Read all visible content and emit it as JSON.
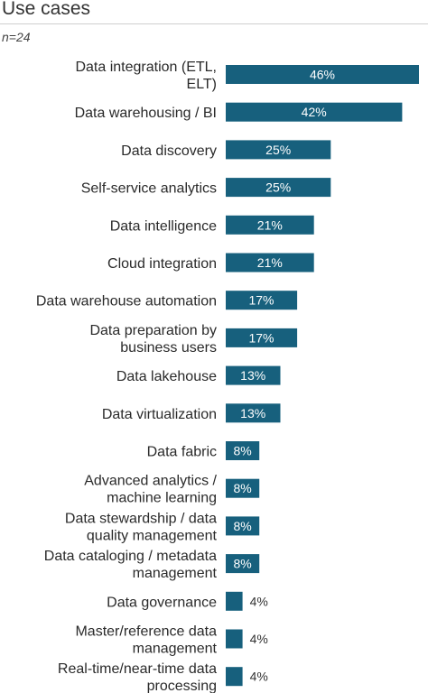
{
  "chart_data": {
    "type": "bar",
    "orientation": "horizontal",
    "title": "Use cases",
    "note": "n=24",
    "bar_color": "#17607d",
    "value_suffix": "%",
    "xlim": [
      0,
      46
    ],
    "grid": false,
    "legend": "none",
    "categories": [
      [
        "Data integration (ETL,",
        "ELT)"
      ],
      [
        "Data warehousing / BI"
      ],
      [
        "Data discovery"
      ],
      [
        "Self-service analytics"
      ],
      [
        "Data intelligence"
      ],
      [
        "Cloud integration"
      ],
      [
        "Data warehouse automation"
      ],
      [
        "Data preparation by",
        "business users"
      ],
      [
        "Data lakehouse"
      ],
      [
        "Data virtualization"
      ],
      [
        "Data fabric"
      ],
      [
        "Advanced analytics /",
        "machine learning"
      ],
      [
        "Data stewardship / data",
        "quality management"
      ],
      [
        "Data cataloging / metadata",
        "management"
      ],
      [
        "Data governance"
      ],
      [
        "Master/reference data",
        "management"
      ],
      [
        "Real-time/near-time data",
        "processing"
      ]
    ],
    "values": [
      46,
      42,
      25,
      25,
      21,
      21,
      17,
      17,
      13,
      13,
      8,
      8,
      8,
      8,
      4,
      4,
      4
    ]
  }
}
